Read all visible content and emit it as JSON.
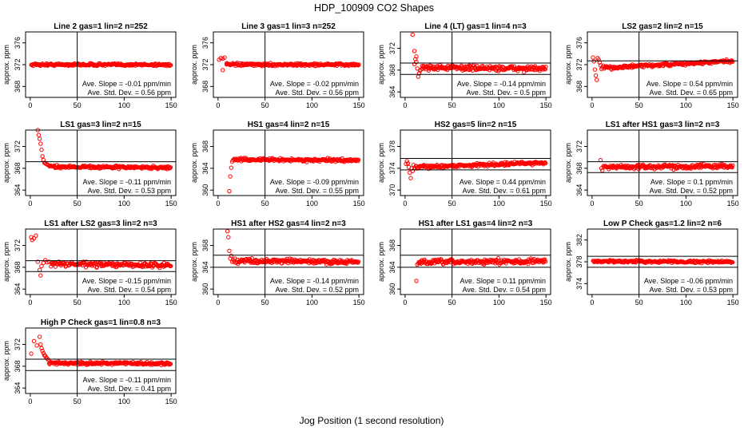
{
  "figure": {
    "title": "HDP_100909  CO2 Shapes",
    "xlabel": "Jog Position (1 second resolution)",
    "ylabel": "approx. ppm",
    "point_color": "#ff0000"
  },
  "chart_data": [
    {
      "type": "scatter",
      "title": "Line 2 gas=1 lin=2 n=252",
      "ylabel": "approx. ppm",
      "xlim": [
        -5,
        155
      ],
      "ylim": [
        366,
        378
      ],
      "yticks": [
        368,
        372,
        376
      ],
      "xticks": [
        0,
        50,
        100,
        150
      ],
      "vline": 50,
      "hlines": [],
      "slope_label": "Ave. Slope = -0.01  ppm/min",
      "std_label": "Ave. Std. Dev. = 0.56  ppm",
      "trend": {
        "x_start": 1,
        "x_end": 150,
        "base": 372.0,
        "slope_per_point": -0.0001,
        "noise": 0.18
      },
      "spikes": []
    },
    {
      "type": "scatter",
      "title": "Line 3 gas=1 lin=3 n=252",
      "ylabel": "approx. ppm",
      "xlim": [
        -5,
        155
      ],
      "ylim": [
        366,
        378
      ],
      "yticks": [
        368,
        372,
        376
      ],
      "xticks": [
        0,
        50,
        100,
        150
      ],
      "vline": 50,
      "hlines": [],
      "slope_label": "Ave. Slope = -0.02  ppm/min",
      "std_label": "Ave. Std. Dev. = 0.56  ppm",
      "trend": {
        "x_start": 9,
        "x_end": 150,
        "base": 372.0,
        "slope_per_point": -0.0001,
        "noise": 0.18
      },
      "spikes": [
        [
          1,
          372.9
        ],
        [
          3,
          373.2
        ],
        [
          5,
          373.1
        ],
        [
          7,
          373.3
        ],
        [
          9,
          372.2
        ],
        [
          5,
          371.0
        ]
      ]
    },
    {
      "type": "scatter",
      "title": "Line 4 (LT) gas=1 lin=4 n=3",
      "ylabel": "approx. ppm",
      "xlim": [
        -5,
        155
      ],
      "ylim": [
        363,
        375
      ],
      "yticks": [
        364,
        368,
        372
      ],
      "xticks": [
        0,
        50,
        100,
        150
      ],
      "vline": 50,
      "hlines": [
        369.3,
        367.2
      ],
      "slope_label": "Ave. Slope = -0.14  ppm/min",
      "std_label": "Ave. Std. Dev. = 0.5  ppm",
      "trend": {
        "x_start": 18,
        "x_end": 150,
        "base": 368.5,
        "slope_per_point": -0.002,
        "noise": 0.35
      },
      "spikes": [
        [
          8,
          374.5
        ],
        [
          10,
          371.5
        ],
        [
          11,
          370.0
        ],
        [
          12,
          369.5
        ],
        [
          13,
          368.3
        ],
        [
          14,
          366.8
        ],
        [
          15,
          367.4
        ],
        [
          16,
          367.9
        ],
        [
          17,
          368.1
        ],
        [
          10,
          369.1
        ],
        [
          12,
          370.5
        ]
      ]
    },
    {
      "type": "scatter",
      "title": "LS2 gas=2 lin=2 n=15",
      "ylabel": "approx. ppm",
      "xlim": [
        -5,
        155
      ],
      "ylim": [
        366,
        378
      ],
      "yticks": [
        368,
        372,
        376
      ],
      "xticks": [
        0,
        50,
        100,
        150
      ],
      "vline": 50,
      "hlines": [
        372.7
      ],
      "slope_label": "Ave. Slope = 0.54  ppm/min",
      "std_label": "Ave. Std. Dev. = 0.65  ppm",
      "trend": {
        "x_start": 13,
        "x_end": 150,
        "base": 371.4,
        "slope_per_point": 0.009,
        "noise": 0.22
      },
      "spikes": [
        [
          1,
          373.3
        ],
        [
          2,
          372.6
        ],
        [
          3,
          371.1
        ],
        [
          4,
          370.0
        ],
        [
          5,
          369.2
        ],
        [
          6,
          373.2
        ],
        [
          7,
          372.9
        ],
        [
          8,
          372.4
        ],
        [
          9,
          371.9
        ],
        [
          10,
          371.2
        ],
        [
          11,
          371.5
        ],
        [
          12,
          371.8
        ]
      ]
    },
    {
      "type": "scatter",
      "title": "LS1 gas=3 lin=2 n=15",
      "ylabel": "approx. ppm",
      "xlim": [
        -5,
        155
      ],
      "ylim": [
        363,
        375
      ],
      "yticks": [
        364,
        368,
        372
      ],
      "xticks": [
        0,
        50,
        100,
        150
      ],
      "vline": 50,
      "hlines": [
        369.2
      ],
      "slope_label": "Ave. Slope = -0.11  ppm/min",
      "std_label": "Ave. Std. Dev. = 0.53  ppm",
      "trend": {
        "x_start": 20,
        "x_end": 150,
        "base": 368.3,
        "slope_per_point": -0.0015,
        "noise": 0.2
      },
      "spikes": [
        [
          8,
          375.0
        ],
        [
          9,
          374.1
        ],
        [
          10,
          373.4
        ],
        [
          11,
          372.5
        ],
        [
          12,
          371.4
        ],
        [
          13,
          370.2
        ],
        [
          14,
          369.5
        ],
        [
          15,
          369.0
        ],
        [
          16,
          368.9
        ],
        [
          17,
          368.8
        ],
        [
          18,
          368.7
        ],
        [
          19,
          368.6
        ]
      ]
    },
    {
      "type": "scatter",
      "title": "HS1 gas=4 lin=2 n=15",
      "ylabel": "approx. ppm",
      "xlim": [
        -5,
        155
      ],
      "ylim": [
        359,
        371
      ],
      "yticks": [
        360,
        364,
        368
      ],
      "xticks": [
        0,
        50,
        100,
        150
      ],
      "vline": 50,
      "hlines": [],
      "slope_label": "Ave. Slope = -0.09  ppm/min",
      "std_label": "Ave. Std. Dev. = 0.55  ppm",
      "trend": {
        "x_start": 17,
        "x_end": 150,
        "base": 365.6,
        "slope_per_point": -0.0012,
        "noise": 0.2
      },
      "spikes": [
        [
          12,
          359.8
        ],
        [
          13,
          362.5
        ],
        [
          14,
          364.1
        ],
        [
          15,
          365.2
        ],
        [
          16,
          365.5
        ]
      ]
    },
    {
      "type": "scatter",
      "title": "HS2 gas=5 lin=2 n=15",
      "ylabel": "approx. ppm",
      "xlim": [
        -5,
        155
      ],
      "ylim": [
        369,
        381
      ],
      "yticks": [
        370,
        374,
        378
      ],
      "xticks": [
        0,
        50,
        100,
        150
      ],
      "vline": 50,
      "hlines": [
        375.8,
        373.7
      ],
      "slope_label": "Ave. Slope = 0.44  ppm/min",
      "std_label": "Ave. Std. Dev. = 0.61  ppm",
      "trend": {
        "x_start": 10,
        "x_end": 150,
        "base": 374.2,
        "slope_per_point": 0.006,
        "noise": 0.22
      },
      "spikes": [
        [
          1,
          374.8
        ],
        [
          2,
          375.3
        ],
        [
          3,
          374.9
        ],
        [
          4,
          374.2
        ],
        [
          5,
          373.2
        ],
        [
          6,
          372.2
        ],
        [
          7,
          374.0
        ],
        [
          8,
          373.5
        ],
        [
          9,
          374.6
        ]
      ]
    },
    {
      "type": "scatter",
      "title": "LS1 after HS1 gas=3 lin=2 n=3",
      "ylabel": "approx. ppm",
      "xlim": [
        -5,
        155
      ],
      "ylim": [
        363,
        375
      ],
      "yticks": [
        364,
        368,
        372
      ],
      "xticks": [
        0,
        50,
        100,
        150
      ],
      "vline": 50,
      "hlines": [
        369.2,
        367.2
      ],
      "slope_label": "Ave. Slope = 0.1  ppm/min",
      "std_label": "Ave. Std. Dev. = 0.52  ppm",
      "trend": {
        "x_start": 13,
        "x_end": 150,
        "base": 368.2,
        "slope_per_point": 0.0014,
        "noise": 0.3
      },
      "spikes": [
        [
          9,
          369.5
        ],
        [
          10,
          368.0
        ],
        [
          11,
          367.6
        ],
        [
          12,
          368.4
        ]
      ]
    },
    {
      "type": "scatter",
      "title": "LS1 after LS2 gas=3 lin=2 n=3",
      "ylabel": "approx. ppm",
      "xlim": [
        -5,
        155
      ],
      "ylim": [
        363,
        375
      ],
      "yticks": [
        364,
        368,
        372
      ],
      "xticks": [
        0,
        50,
        100,
        150
      ],
      "vline": 50,
      "hlines": [
        369.2,
        367.2
      ],
      "slope_label": "Ave. Slope = -0.15  ppm/min",
      "std_label": "Ave. Std. Dev. = 0.54  ppm",
      "trend": {
        "x_start": 22,
        "x_end": 150,
        "base": 368.6,
        "slope_per_point": -0.002,
        "noise": 0.32
      },
      "spikes": [
        [
          1,
          373.5
        ],
        [
          2,
          373.0
        ],
        [
          4,
          373.3
        ],
        [
          6,
          373.8
        ],
        [
          8,
          369.0
        ],
        [
          10,
          367.5
        ],
        [
          11,
          366.5
        ],
        [
          12,
          368.2
        ],
        [
          14,
          368.8
        ],
        [
          16,
          369.3
        ],
        [
          18,
          368.9
        ],
        [
          20,
          369.0
        ]
      ]
    },
    {
      "type": "scatter",
      "title": "HS1 after HS2 gas=4 lin=2 n=3",
      "ylabel": "approx. ppm",
      "xlim": [
        -5,
        155
      ],
      "ylim": [
        359,
        371
      ],
      "yticks": [
        360,
        364,
        368
      ],
      "xticks": [
        0,
        50,
        100,
        150
      ],
      "vline": 50,
      "hlines": [
        366.2,
        364.0
      ],
      "slope_label": "Ave. Slope = -0.14  ppm/min",
      "std_label": "Ave. Std. Dev. = 0.52  ppm",
      "trend": {
        "x_start": 20,
        "x_end": 150,
        "base": 365.2,
        "slope_per_point": -0.002,
        "noise": 0.3
      },
      "spikes": [
        [
          10,
          370.6
        ],
        [
          11,
          369.5
        ],
        [
          12,
          367.0
        ],
        [
          13,
          365.6
        ],
        [
          14,
          366.1
        ],
        [
          15,
          365.0
        ],
        [
          16,
          365.4
        ],
        [
          17,
          365.0
        ],
        [
          18,
          365.6
        ],
        [
          19,
          364.8
        ]
      ]
    },
    {
      "type": "scatter",
      "title": "HS1 after LS1 gas=4 lin=2 n=3",
      "ylabel": "approx. ppm",
      "xlim": [
        -5,
        155
      ],
      "ylim": [
        359,
        371
      ],
      "yticks": [
        360,
        364,
        368
      ],
      "xticks": [
        0,
        50,
        100,
        150
      ],
      "vline": 50,
      "hlines": [
        366.2,
        364.0
      ],
      "slope_label": "Ave. Slope = 0.11  ppm/min",
      "std_label": "Ave. Std. Dev. = 0.54  ppm",
      "trend": {
        "x_start": 14,
        "x_end": 150,
        "base": 364.9,
        "slope_per_point": 0.0015,
        "noise": 0.33
      },
      "spikes": [
        [
          12,
          361.5
        ],
        [
          13,
          364.5
        ]
      ]
    },
    {
      "type": "scatter",
      "title": "Low P Check gas=1.2 lin=2 n=6",
      "ylabel": "approx. ppm",
      "xlim": [
        -5,
        155
      ],
      "ylim": [
        372,
        384
      ],
      "yticks": [
        374,
        378,
        382
      ],
      "xticks": [
        0,
        50,
        100,
        150
      ],
      "vline": 50,
      "hlines": [
        379.0,
        377.0
      ],
      "slope_label": "Ave. Slope = -0.06  ppm/min",
      "std_label": "Ave. Std. Dev. = 0.53  ppm",
      "trend": {
        "x_start": 1,
        "x_end": 150,
        "base": 378.1,
        "slope_per_point": -0.0008,
        "noise": 0.16
      },
      "spikes": []
    },
    {
      "type": "scatter",
      "title": "High P Check gas=1 lin=0.8 n=3",
      "ylabel": "approx. ppm",
      "xlim": [
        -5,
        155
      ],
      "ylim": [
        363,
        375
      ],
      "yticks": [
        364,
        368,
        372
      ],
      "xticks": [
        0,
        50,
        100,
        150
      ],
      "vline": 50,
      "hlines": [
        369.3,
        367.2
      ],
      "slope_label": "Ave. Slope = -0.11  ppm/min",
      "std_label": "Ave. Std. Dev. = 0.41  ppm",
      "trend": {
        "x_start": 20,
        "x_end": 150,
        "base": 368.6,
        "slope_per_point": -0.0012,
        "noise": 0.2
      },
      "spikes": [
        [
          1,
          370.3
        ],
        [
          4,
          372.6
        ],
        [
          7,
          371.8
        ],
        [
          10,
          373.4
        ],
        [
          11,
          372.0
        ],
        [
          12,
          371.3
        ],
        [
          13,
          370.8
        ],
        [
          14,
          370.4
        ],
        [
          15,
          370.0
        ],
        [
          16,
          369.9
        ],
        [
          17,
          369.6
        ],
        [
          18,
          369.4
        ],
        [
          19,
          369.2
        ]
      ]
    }
  ]
}
